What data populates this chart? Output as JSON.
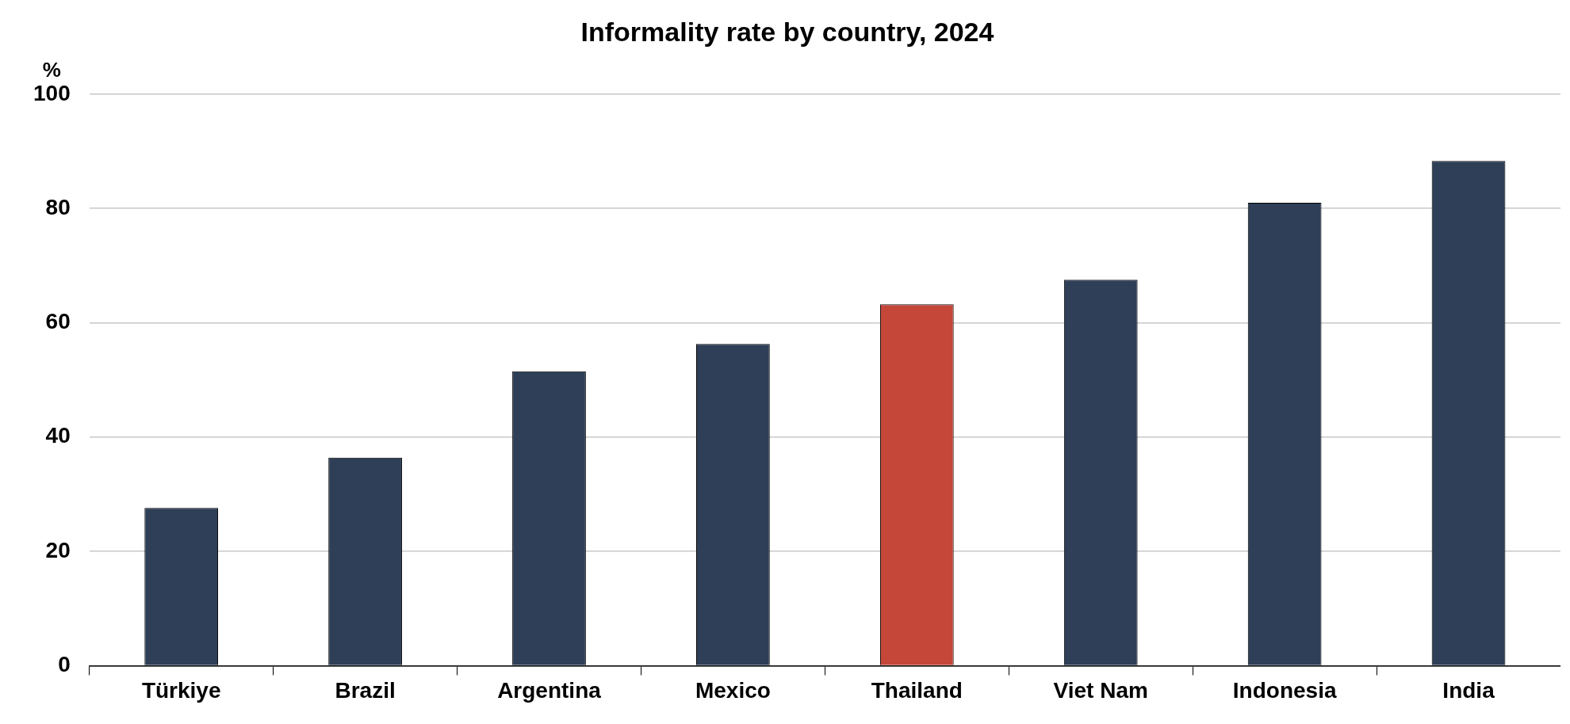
{
  "chart_data": {
    "type": "bar",
    "title": "Informality rate by country, 2024",
    "ylabel": "%",
    "categories": [
      "Türkiye",
      "Brazil",
      "Argentina",
      "Mexico",
      "Thailand",
      "Viet Nam",
      "Indonesia",
      "India"
    ],
    "values": [
      27.6,
      36.4,
      51.5,
      56.3,
      63.2,
      67.5,
      81.0,
      88.3
    ],
    "colors": [
      "#2e3f57",
      "#2e3f57",
      "#2e3f57",
      "#2e3f57",
      "#c4473a",
      "#2e3f57",
      "#2e3f57",
      "#2e3f57"
    ],
    "ylim": [
      0,
      100
    ],
    "yticks": [
      0,
      20,
      40,
      60,
      80,
      100
    ],
    "grid": "y",
    "legend": false
  }
}
